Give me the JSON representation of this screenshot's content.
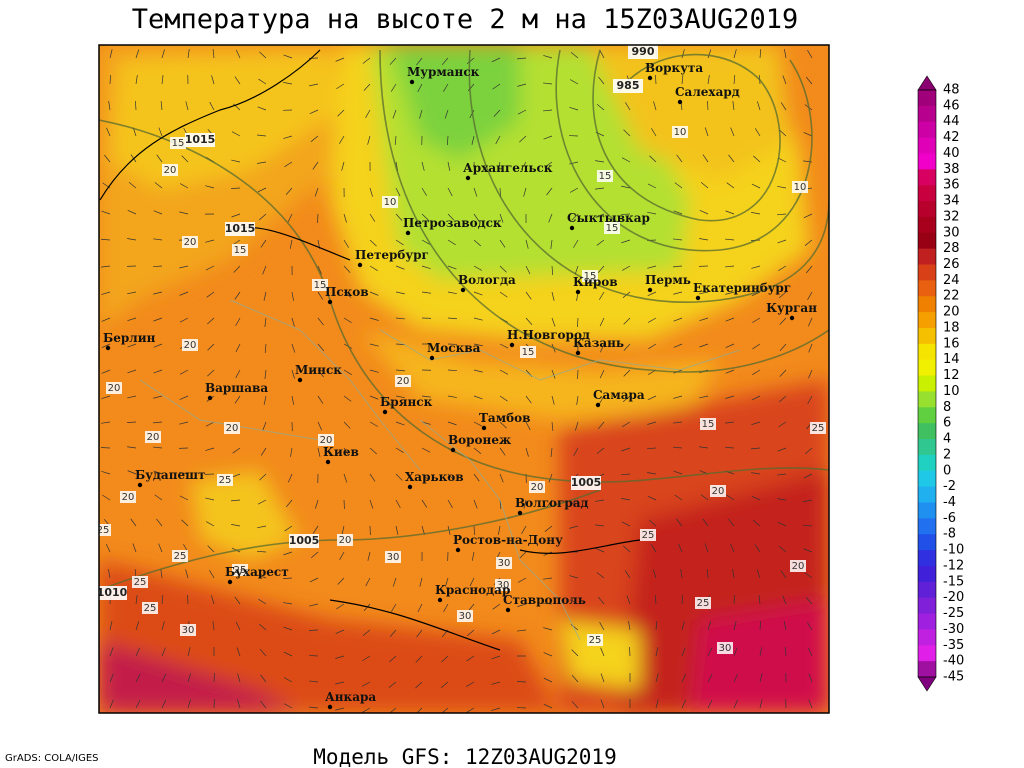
{
  "header": {
    "title": "Температура на высоте 2 м на 15Z03AUG2019"
  },
  "footer": {
    "model": "Модель GFS: 12Z03AUG2019"
  },
  "credit": "GrADS: COLA/IGES",
  "cities": [
    "Мурманск",
    "Воркута",
    "Салехард",
    "Архангельск",
    "Сыктывкар",
    "Петрозаводск",
    "Петербург",
    "Вологда",
    "Киров",
    "Пермь",
    "Екатеринбург",
    "Курган",
    "Псков",
    "Берлин",
    "Москва",
    "Н.Новгород",
    "Казань",
    "Минск",
    "Варшава",
    "Самара",
    "Брянск",
    "Тамбов",
    "Киев",
    "Воронеж",
    "Будапешт",
    "Харьков",
    "Волгоград",
    "Ростов-на-Дону",
    "Бухарест",
    "Краснодар",
    "Ставрополь",
    "Анкара"
  ],
  "isobar_labels": [
    990,
    985,
    1015,
    1015,
    1005,
    1005,
    1010
  ],
  "temperature_labels": [
    20,
    15,
    20,
    15,
    10,
    15,
    10,
    15,
    10,
    15,
    15,
    20,
    20,
    20,
    20,
    20,
    20,
    15,
    15,
    20,
    25,
    20,
    20,
    25,
    20,
    25,
    25,
    30,
    25,
    25,
    30,
    30,
    30,
    25,
    20,
    25,
    25,
    30,
    30,
    25
  ],
  "colorbar": {
    "labels": [
      48,
      46,
      44,
      42,
      40,
      38,
      36,
      34,
      32,
      30,
      28,
      26,
      24,
      22,
      20,
      18,
      16,
      14,
      12,
      10,
      8,
      6,
      4,
      2,
      0,
      -2,
      -4,
      -6,
      -8,
      -10,
      -12,
      -15,
      -20,
      -25,
      -30,
      -35,
      -40,
      -45
    ]
  }
}
